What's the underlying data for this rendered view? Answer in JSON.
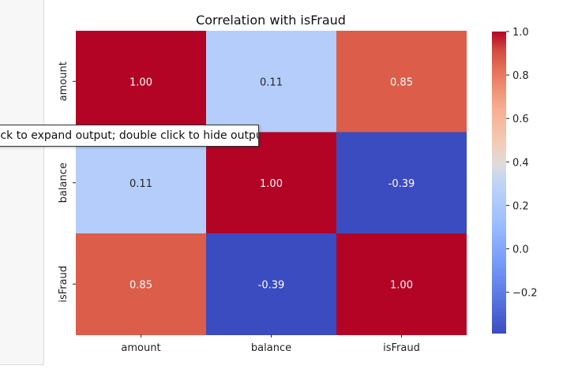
{
  "tooltip": {
    "text": "click to expand output; double click to hide output"
  },
  "chart_data": {
    "type": "heatmap",
    "title": "Correlation with isFraud",
    "x_labels": [
      "amount",
      "balance",
      "isFraud"
    ],
    "y_labels": [
      "amount",
      "balance",
      "isFraud"
    ],
    "values": [
      [
        1.0,
        0.11,
        0.85
      ],
      [
        0.11,
        1.0,
        -0.39
      ],
      [
        0.85,
        -0.39,
        1.0
      ]
    ],
    "annotations_format": "0.00",
    "colormap": "coolwarm",
    "colorbar": {
      "range": [
        -0.39,
        1.0
      ],
      "ticks": [
        1.0,
        0.8,
        0.6,
        0.4,
        0.2,
        0.0,
        -0.2
      ],
      "tick_labels": [
        "1.0",
        "0.8",
        "0.6",
        "0.4",
        "0.2",
        "0.0",
        "−0.2"
      ]
    },
    "cell_colors": [
      [
        "#b40426",
        "#b5cdfa",
        "#dc5d4a"
      ],
      [
        "#b5cdfa",
        "#b40426",
        "#3b4cc0"
      ],
      [
        "#dc5d4a",
        "#3b4cc0",
        "#b40426"
      ]
    ]
  }
}
